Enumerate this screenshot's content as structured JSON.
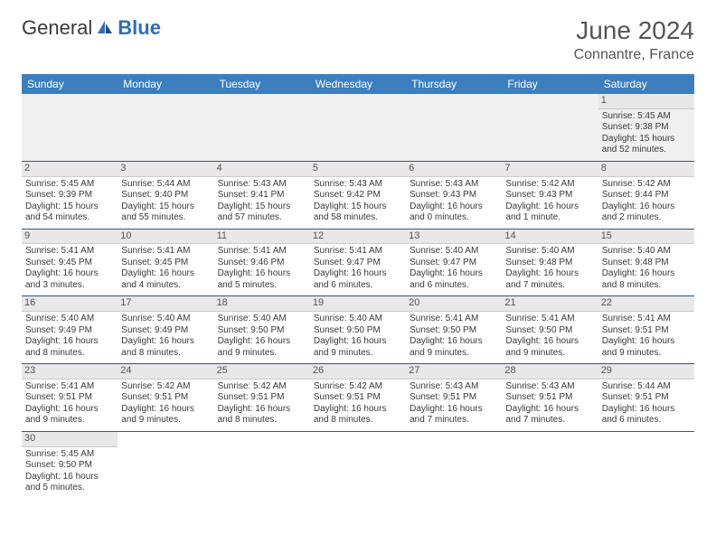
{
  "logo": {
    "text1": "General",
    "text2": "Blue"
  },
  "title": "June 2024",
  "location": "Connantre, France",
  "colors": {
    "header_bg": "#3b7fbf",
    "header_fg": "#ffffff",
    "rule": "#2a5a8a",
    "daynum_bg": "#e8e8e8",
    "blank_row_bg": "#f0f0f0",
    "logo_blue": "#2f6fb0"
  },
  "weekdays": [
    "Sunday",
    "Monday",
    "Tuesday",
    "Wednesday",
    "Thursday",
    "Friday",
    "Saturday"
  ],
  "weeks": [
    [
      null,
      null,
      null,
      null,
      null,
      null,
      {
        "n": "1",
        "sr": "Sunrise: 5:45 AM",
        "ss": "Sunset: 9:38 PM",
        "dl": "Daylight: 15 hours and 52 minutes."
      }
    ],
    [
      {
        "n": "2",
        "sr": "Sunrise: 5:45 AM",
        "ss": "Sunset: 9:39 PM",
        "dl": "Daylight: 15 hours and 54 minutes."
      },
      {
        "n": "3",
        "sr": "Sunrise: 5:44 AM",
        "ss": "Sunset: 9:40 PM",
        "dl": "Daylight: 15 hours and 55 minutes."
      },
      {
        "n": "4",
        "sr": "Sunrise: 5:43 AM",
        "ss": "Sunset: 9:41 PM",
        "dl": "Daylight: 15 hours and 57 minutes."
      },
      {
        "n": "5",
        "sr": "Sunrise: 5:43 AM",
        "ss": "Sunset: 9:42 PM",
        "dl": "Daylight: 15 hours and 58 minutes."
      },
      {
        "n": "6",
        "sr": "Sunrise: 5:43 AM",
        "ss": "Sunset: 9:43 PM",
        "dl": "Daylight: 16 hours and 0 minutes."
      },
      {
        "n": "7",
        "sr": "Sunrise: 5:42 AM",
        "ss": "Sunset: 9:43 PM",
        "dl": "Daylight: 16 hours and 1 minute."
      },
      {
        "n": "8",
        "sr": "Sunrise: 5:42 AM",
        "ss": "Sunset: 9:44 PM",
        "dl": "Daylight: 16 hours and 2 minutes."
      }
    ],
    [
      {
        "n": "9",
        "sr": "Sunrise: 5:41 AM",
        "ss": "Sunset: 9:45 PM",
        "dl": "Daylight: 16 hours and 3 minutes."
      },
      {
        "n": "10",
        "sr": "Sunrise: 5:41 AM",
        "ss": "Sunset: 9:45 PM",
        "dl": "Daylight: 16 hours and 4 minutes."
      },
      {
        "n": "11",
        "sr": "Sunrise: 5:41 AM",
        "ss": "Sunset: 9:46 PM",
        "dl": "Daylight: 16 hours and 5 minutes."
      },
      {
        "n": "12",
        "sr": "Sunrise: 5:41 AM",
        "ss": "Sunset: 9:47 PM",
        "dl": "Daylight: 16 hours and 6 minutes."
      },
      {
        "n": "13",
        "sr": "Sunrise: 5:40 AM",
        "ss": "Sunset: 9:47 PM",
        "dl": "Daylight: 16 hours and 6 minutes."
      },
      {
        "n": "14",
        "sr": "Sunrise: 5:40 AM",
        "ss": "Sunset: 9:48 PM",
        "dl": "Daylight: 16 hours and 7 minutes."
      },
      {
        "n": "15",
        "sr": "Sunrise: 5:40 AM",
        "ss": "Sunset: 9:48 PM",
        "dl": "Daylight: 16 hours and 8 minutes."
      }
    ],
    [
      {
        "n": "16",
        "sr": "Sunrise: 5:40 AM",
        "ss": "Sunset: 9:49 PM",
        "dl": "Daylight: 16 hours and 8 minutes."
      },
      {
        "n": "17",
        "sr": "Sunrise: 5:40 AM",
        "ss": "Sunset: 9:49 PM",
        "dl": "Daylight: 16 hours and 8 minutes."
      },
      {
        "n": "18",
        "sr": "Sunrise: 5:40 AM",
        "ss": "Sunset: 9:50 PM",
        "dl": "Daylight: 16 hours and 9 minutes."
      },
      {
        "n": "19",
        "sr": "Sunrise: 5:40 AM",
        "ss": "Sunset: 9:50 PM",
        "dl": "Daylight: 16 hours and 9 minutes."
      },
      {
        "n": "20",
        "sr": "Sunrise: 5:41 AM",
        "ss": "Sunset: 9:50 PM",
        "dl": "Daylight: 16 hours and 9 minutes."
      },
      {
        "n": "21",
        "sr": "Sunrise: 5:41 AM",
        "ss": "Sunset: 9:50 PM",
        "dl": "Daylight: 16 hours and 9 minutes."
      },
      {
        "n": "22",
        "sr": "Sunrise: 5:41 AM",
        "ss": "Sunset: 9:51 PM",
        "dl": "Daylight: 16 hours and 9 minutes."
      }
    ],
    [
      {
        "n": "23",
        "sr": "Sunrise: 5:41 AM",
        "ss": "Sunset: 9:51 PM",
        "dl": "Daylight: 16 hours and 9 minutes."
      },
      {
        "n": "24",
        "sr": "Sunrise: 5:42 AM",
        "ss": "Sunset: 9:51 PM",
        "dl": "Daylight: 16 hours and 9 minutes."
      },
      {
        "n": "25",
        "sr": "Sunrise: 5:42 AM",
        "ss": "Sunset: 9:51 PM",
        "dl": "Daylight: 16 hours and 8 minutes."
      },
      {
        "n": "26",
        "sr": "Sunrise: 5:42 AM",
        "ss": "Sunset: 9:51 PM",
        "dl": "Daylight: 16 hours and 8 minutes."
      },
      {
        "n": "27",
        "sr": "Sunrise: 5:43 AM",
        "ss": "Sunset: 9:51 PM",
        "dl": "Daylight: 16 hours and 7 minutes."
      },
      {
        "n": "28",
        "sr": "Sunrise: 5:43 AM",
        "ss": "Sunset: 9:51 PM",
        "dl": "Daylight: 16 hours and 7 minutes."
      },
      {
        "n": "29",
        "sr": "Sunrise: 5:44 AM",
        "ss": "Sunset: 9:51 PM",
        "dl": "Daylight: 16 hours and 6 minutes."
      }
    ],
    [
      {
        "n": "30",
        "sr": "Sunrise: 5:45 AM",
        "ss": "Sunset: 9:50 PM",
        "dl": "Daylight: 16 hours and 5 minutes."
      },
      null,
      null,
      null,
      null,
      null,
      null
    ]
  ]
}
